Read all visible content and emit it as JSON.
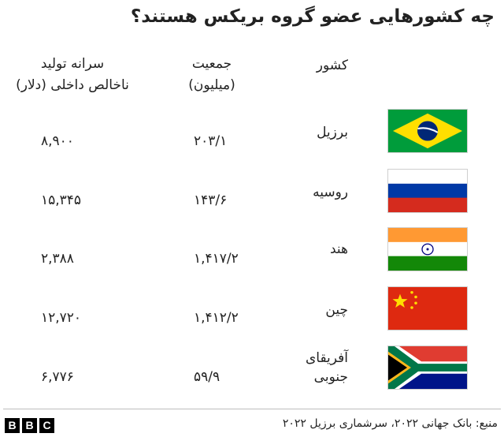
{
  "title": "چه کشورهایی عضو گروه بریکس هستند؟",
  "headers": {
    "country": "کشور",
    "population_line1": "جمعیت",
    "population_line2": "(میلیون)",
    "gdp_line1": "سرانه تولید",
    "gdp_line2": "ناخالص داخلی (دلار)"
  },
  "rows": [
    {
      "country": "برزیل",
      "population": "۲۰۳/۱",
      "gdp": "۸,۹۰۰",
      "flag": "brazil-flag"
    },
    {
      "country": "روسیه",
      "population": "۱۴۳/۶",
      "gdp": "۱۵,۳۴۵",
      "flag": "russia-flag"
    },
    {
      "country": "هند",
      "population": "۱,۴۱۷/۲",
      "gdp": "۲,۳۸۸",
      "flag": "india-flag"
    },
    {
      "country": "چین",
      "population": "۱,۴۱۲/۲",
      "gdp": "۱۲,۷۲۰",
      "flag": "china-flag"
    },
    {
      "country_line1": "آفریقای",
      "country_line2": "جنوبی",
      "population": "۵۹/۹",
      "gdp": "۶,۷۷۶",
      "flag": "south-africa-flag"
    }
  ],
  "footer": {
    "logo": [
      "B",
      "B",
      "C"
    ],
    "source": "منبع: بانک جهانی ۲۰۲۲، سرشماری برزیل ۲۰۲۲"
  }
}
